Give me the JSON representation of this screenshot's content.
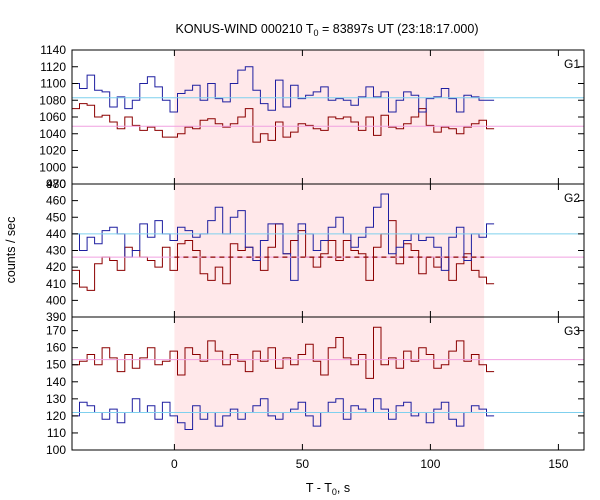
{
  "chart_data": {
    "type": "line",
    "title": "KONUS-WIND 000210 T",
    "title_sub": "0",
    "title_rest": " = 83897s UT (23:18:17.000)",
    "xlabel": "T - T",
    "xlabel_sub": "0",
    "xlabel_rest": ", s",
    "ylabel": "counts / sec",
    "xlim": [
      -40,
      160
    ],
    "xticks": [
      "0",
      "50",
      "100",
      "150"
    ],
    "xtick_values": [
      0,
      50,
      100,
      150
    ],
    "highlight": {
      "from": 0,
      "to": 121,
      "color": "#ffe8ea"
    },
    "colors": {
      "red": "#8b0000",
      "blue": "#1f1fa0",
      "cyan": "#7fd0ee",
      "pink": "#f0a0e0"
    },
    "panels": [
      {
        "label": "G1",
        "ylim": [
          980,
          1140
        ],
        "yticks": [
          "980",
          "1000",
          "1020",
          "1040",
          "1060",
          "1080",
          "1100",
          "1120",
          "1140"
        ],
        "ytick_values": [
          980,
          1000,
          1020,
          1040,
          1060,
          1080,
          1100,
          1120,
          1140
        ],
        "blue_bg": 1083,
        "red_bg": 1049,
        "red_dashed": false,
        "x_start": -40,
        "bin": 2.944,
        "blue": [
          1100,
          1094,
          1110,
          1092,
          1090,
          1072,
          1084,
          1070,
          1080,
          1100,
          1108,
          1096,
          1080,
          1066,
          1088,
          1092,
          1098,
          1080,
          1100,
          1082,
          1078,
          1100,
          1116,
          1120,
          1092,
          1076,
          1068,
          1104,
          1072,
          1098,
          1082,
          1086,
          1090,
          1096,
          1080,
          1082,
          1080,
          1074,
          1084,
          1096,
          1084,
          1090,
          1066,
          1080,
          1090,
          1086,
          1066,
          1082,
          1084,
          1094,
          1082,
          1066,
          1086,
          1084,
          1080,
          1080
        ],
        "red": [
          1070,
          1076,
          1074,
          1060,
          1062,
          1054,
          1046,
          1060,
          1050,
          1044,
          1048,
          1044,
          1036,
          1036,
          1040,
          1048,
          1046,
          1056,
          1058,
          1052,
          1048,
          1052,
          1060,
          1070,
          1030,
          1040,
          1032,
          1054,
          1036,
          1042,
          1052,
          1050,
          1046,
          1044,
          1060,
          1058,
          1060,
          1054,
          1044,
          1060,
          1038,
          1062,
          1048,
          1046,
          1052,
          1060,
          1070,
          1050,
          1042,
          1048,
          1046,
          1040,
          1048,
          1052,
          1056,
          1046
        ]
      },
      {
        "label": "G2",
        "ylim": [
          390,
          470
        ],
        "yticks": [
          "390",
          "400",
          "410",
          "420",
          "430",
          "440",
          "450",
          "460",
          "470"
        ],
        "ytick_values": [
          390,
          400,
          410,
          420,
          430,
          440,
          450,
          460,
          470
        ],
        "blue_bg": 440,
        "red_bg": 426,
        "red_dashed": true,
        "x_start": -40,
        "bin": 2.944,
        "blue": [
          440,
          430,
          438,
          434,
          442,
          444,
          440,
          426,
          430,
          446,
          438,
          448,
          440,
          436,
          444,
          442,
          438,
          440,
          448,
          456,
          440,
          450,
          454,
          432,
          424,
          436,
          446,
          446,
          428,
          412,
          446,
          440,
          430,
          436,
          444,
          450,
          440,
          432,
          438,
          444,
          456,
          464,
          428,
          432,
          436,
          440,
          436,
          438,
          432,
          418,
          438,
          444,
          424,
          440,
          438,
          446
        ],
        "red": [
          418,
          408,
          406,
          422,
          426,
          424,
          418,
          432,
          430,
          426,
          424,
          420,
          432,
          418,
          434,
          436,
          430,
          416,
          412,
          420,
          410,
          434,
          430,
          432,
          424,
          418,
          432,
          446,
          428,
          436,
          442,
          426,
          420,
          428,
          436,
          424,
          436,
          430,
          428,
          412,
          432,
          440,
          448,
          422,
          434,
          430,
          416,
          426,
          420,
          426,
          412,
          422,
          428,
          418,
          414,
          410
        ]
      },
      {
        "label": "G3",
        "ylim": [
          100,
          178
        ],
        "yticks": [
          "100",
          "110",
          "120",
          "130",
          "140",
          "150",
          "160",
          "170"
        ],
        "ytick_values": [
          100,
          110,
          120,
          130,
          140,
          150,
          160,
          170
        ],
        "blue_bg": 122,
        "red_bg": 153,
        "red_dashed": false,
        "x_start": -40,
        "bin": 2.944,
        "blue": [
          120,
          128,
          126,
          122,
          118,
          124,
          116,
          122,
          130,
          122,
          126,
          118,
          128,
          120,
          116,
          112,
          126,
          118,
          122,
          114,
          120,
          124,
          118,
          122,
          126,
          130,
          120,
          118,
          122,
          124,
          128,
          120,
          114,
          122,
          128,
          130,
          118,
          126,
          124,
          122,
          130,
          124,
          118,
          126,
          128,
          120,
          122,
          116,
          124,
          128,
          118,
          114,
          122,
          126,
          124,
          120
        ],
        "red": [
          150,
          152,
          156,
          150,
          160,
          154,
          146,
          156,
          148,
          154,
          160,
          150,
          152,
          158,
          144,
          160,
          156,
          152,
          164,
          158,
          150,
          156,
          152,
          146,
          158,
          152,
          160,
          148,
          154,
          150,
          156,
          162,
          152,
          144,
          160,
          166,
          154,
          150,
          156,
          142,
          172,
          150,
          154,
          148,
          158,
          152,
          160,
          156,
          148,
          150,
          158,
          164,
          152,
          156,
          150,
          146
        ]
      }
    ]
  }
}
